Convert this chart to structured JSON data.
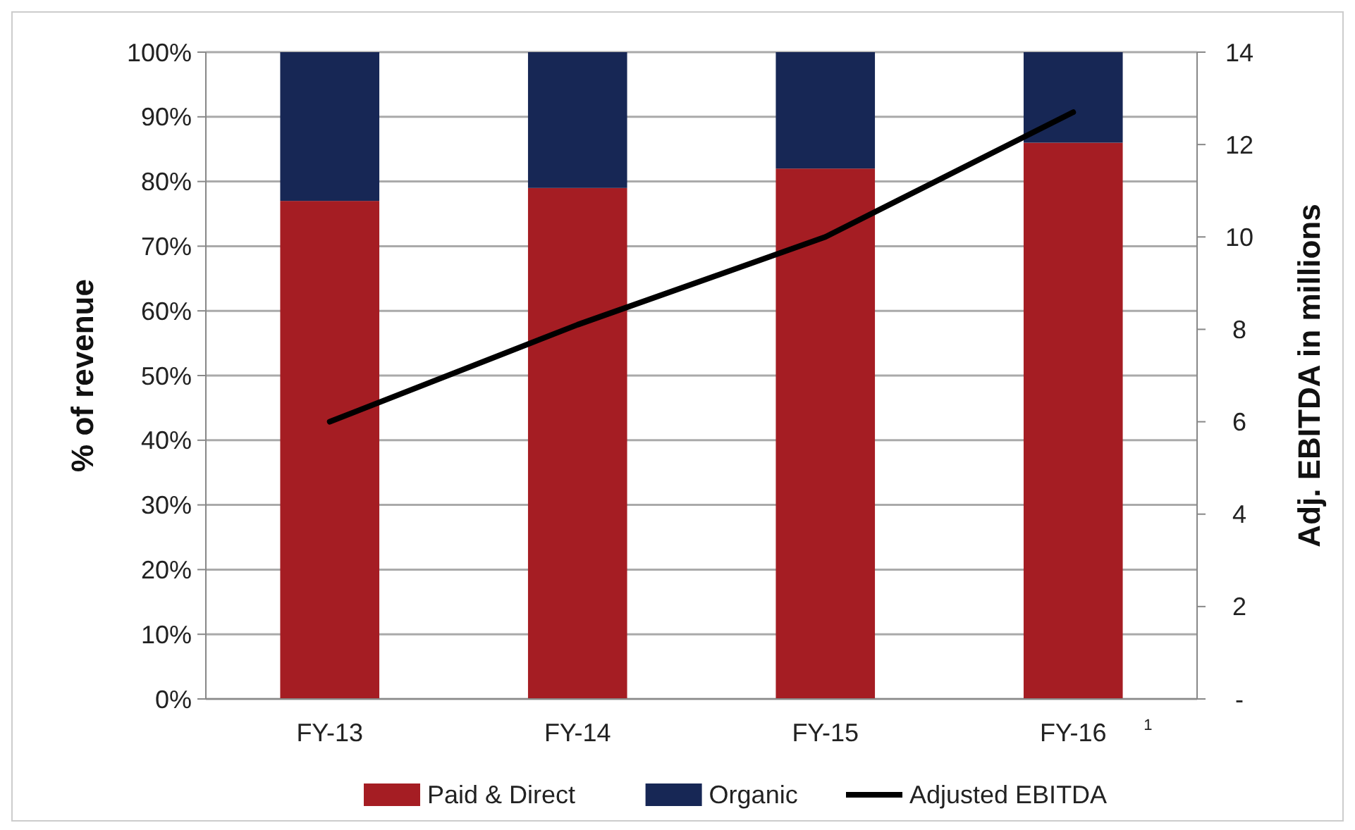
{
  "chart_data": {
    "type": "bar",
    "stacked": true,
    "categories": [
      "FY-13",
      "FY-14",
      "FY-15",
      "FY-16"
    ],
    "series": [
      {
        "name": "Paid & Direct",
        "color": "#a51d23",
        "values": [
          77,
          79,
          82,
          86
        ]
      },
      {
        "name": "Organic",
        "color": "#172755",
        "values": [
          23,
          21,
          18,
          14
        ]
      },
      {
        "name": "Adjusted EBITDA",
        "type": "line",
        "axis": "y2",
        "color": "#000000",
        "values": [
          6.0,
          8.1,
          10.0,
          12.7
        ]
      }
    ],
    "ylabel": "% of revenue",
    "y2label": "Adj. EBITDA in millions",
    "ylim": [
      0,
      100
    ],
    "yticks": [
      {
        "value": 0,
        "label": "0%"
      },
      {
        "value": 10,
        "label": "10%"
      },
      {
        "value": 20,
        "label": "20%"
      },
      {
        "value": 30,
        "label": "30%"
      },
      {
        "value": 40,
        "label": "40%"
      },
      {
        "value": 50,
        "label": "50%"
      },
      {
        "value": 60,
        "label": "60%"
      },
      {
        "value": 70,
        "label": "70%"
      },
      {
        "value": 80,
        "label": "80%"
      },
      {
        "value": 90,
        "label": "90%"
      },
      {
        "value": 100,
        "label": "100%"
      }
    ],
    "y2lim": [
      0,
      14
    ],
    "y2ticks": [
      {
        "value": 0,
        "label": "-"
      },
      2,
      4,
      6,
      8,
      10,
      12,
      14
    ],
    "annotations": [
      "1"
    ],
    "grid": "y",
    "legend": "bottom",
    "marker": "none",
    "line_style": "solid"
  }
}
